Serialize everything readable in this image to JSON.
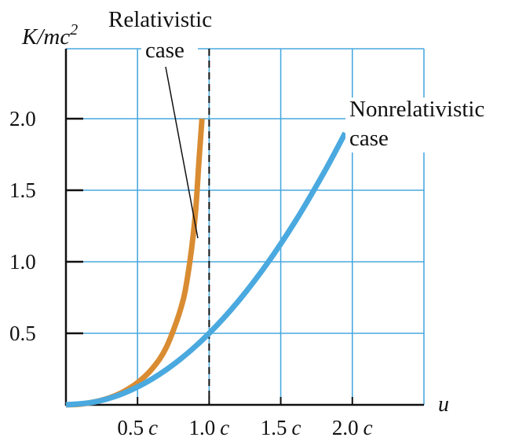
{
  "chart_data": {
    "type": "line",
    "ylabel_main": "K/mc",
    "ylabel_sup": "2",
    "xlabel": "u",
    "xlim": [
      0,
      2.5
    ],
    "ylim": [
      0,
      2.5
    ],
    "grid": true,
    "x_ticks": [
      {
        "value": 0.5,
        "num": "0.5",
        "unit": "c"
      },
      {
        "value": 1.0,
        "num": "1.0",
        "unit": "c"
      },
      {
        "value": 1.5,
        "num": "1.5",
        "unit": "c"
      },
      {
        "value": 2.0,
        "num": "2.0",
        "unit": "c"
      }
    ],
    "y_ticks": [
      {
        "value": 0.5,
        "label": "0.5"
      },
      {
        "value": 1.0,
        "label": "1.0"
      },
      {
        "value": 1.5,
        "label": "1.5"
      },
      {
        "value": 2.0,
        "label": "2.0"
      }
    ],
    "asymptote_x": 1.0,
    "series": [
      {
        "key": "relativistic",
        "color": "#d98c32",
        "x": [
          0,
          0.1,
          0.2,
          0.3,
          0.4,
          0.5,
          0.6,
          0.7,
          0.8,
          0.85,
          0.9,
          0.93,
          0.95
        ],
        "y": [
          0,
          0.005,
          0.021,
          0.048,
          0.091,
          0.155,
          0.25,
          0.4,
          0.667,
          0.898,
          1.294,
          1.72,
          2.0
        ]
      },
      {
        "key": "nonrelativistic",
        "color": "#4aa9df",
        "x": [
          0,
          0.2,
          0.4,
          0.6,
          0.8,
          1.0,
          1.2,
          1.4,
          1.6,
          1.8,
          1.95
        ],
        "y": [
          0,
          0.02,
          0.08,
          0.18,
          0.32,
          0.5,
          0.72,
          0.98,
          1.28,
          1.62,
          1.9
        ]
      }
    ],
    "annotations": {
      "relativistic_line1": "Relativistic",
      "relativistic_line2": "case",
      "nonrelativistic_line1": "Nonrelativistic",
      "nonrelativistic_line2": "case"
    },
    "colors": {
      "grid": "#4aa9df",
      "axes": "#111111"
    }
  }
}
